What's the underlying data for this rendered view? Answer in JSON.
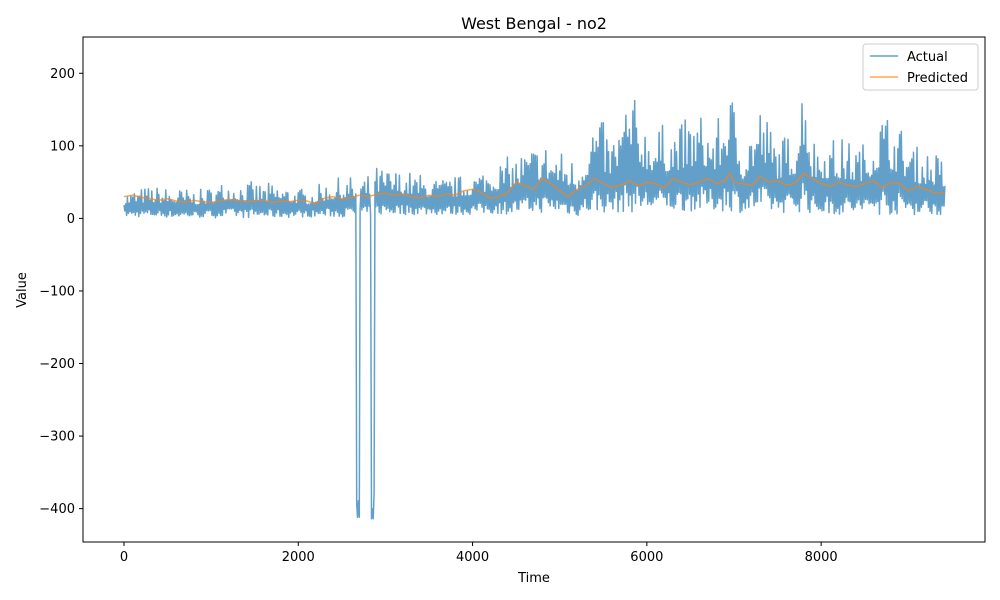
{
  "chart_data": {
    "type": "line",
    "title": "West Bengal - no2",
    "xlabel": "Time",
    "ylabel": "Value",
    "xlim": [
      -470,
      9880
    ],
    "ylim": [
      -446,
      250
    ],
    "x_ticks": [
      0,
      2000,
      4000,
      6000,
      8000
    ],
    "x_tick_labels": [
      "0",
      "2000",
      "4000",
      "6000",
      "8000"
    ],
    "y_ticks": [
      -400,
      -300,
      -200,
      -100,
      0,
      100,
      200
    ],
    "y_tick_labels": [
      "−400",
      "−300",
      "−200",
      "−100",
      "0",
      "100",
      "200"
    ],
    "grid": false,
    "legend_position": "top-right",
    "series": [
      {
        "name": "Actual",
        "color": "#1f77b4",
        "opacity": 0.7,
        "envelope": {
          "x": [
            0,
            300,
            600,
            900,
            1200,
            1500,
            1800,
            2100,
            2400,
            2600,
            2650,
            2750,
            2850,
            2900,
            3000,
            3300,
            3600,
            3900,
            4200,
            4500,
            4800,
            5000,
            5100,
            5200,
            5400,
            5600,
            5800,
            6000,
            6200,
            6400,
            6600,
            6800,
            6950,
            7100,
            7300,
            7500,
            7700,
            7810,
            7900,
            8100,
            8300,
            8500,
            8700,
            8900,
            9100,
            9300,
            9420
          ],
          "high": [
            38,
            45,
            42,
            40,
            55,
            50,
            48,
            40,
            55,
            58,
            55,
            58,
            62,
            72,
            70,
            65,
            55,
            60,
            75,
            90,
            110,
            95,
            90,
            80,
            150,
            115,
            180,
            135,
            130,
            135,
            150,
            130,
            190,
            110,
            165,
            110,
            125,
            220,
            115,
            115,
            110,
            105,
            157,
            130,
            100,
            95,
            82
          ],
          "low": [
            2,
            2,
            1,
            1,
            1,
            1,
            1,
            2,
            2,
            2,
            3,
            3,
            3,
            4,
            5,
            5,
            5,
            5,
            6,
            6,
            8,
            8,
            5,
            3,
            8,
            8,
            8,
            10,
            10,
            10,
            10,
            10,
            10,
            8,
            8,
            8,
            8,
            10,
            5,
            5,
            5,
            5,
            5,
            5,
            5,
            5,
            5
          ]
        },
        "spikes": [
          {
            "x_start": 2670,
            "x_end": 2700,
            "min": -412
          },
          {
            "x_start": 2840,
            "x_end": 2870,
            "min": -414
          }
        ]
      },
      {
        "name": "Predicted",
        "color": "#ff7f0e",
        "opacity": 0.7,
        "x": [
          0,
          100,
          200,
          300,
          400,
          500,
          600,
          700,
          800,
          900,
          1000,
          1100,
          1200,
          1300,
          1400,
          1500,
          1600,
          1700,
          1800,
          1900,
          2000,
          2100,
          2200,
          2300,
          2400,
          2500,
          2600,
          2700,
          2800,
          2900,
          3000,
          3100,
          3200,
          3300,
          3400,
          3500,
          3600,
          3700,
          3800,
          3900,
          4000,
          4100,
          4200,
          4300,
          4400,
          4500,
          4600,
          4700,
          4800,
          4900,
          5000,
          5100,
          5200,
          5300,
          5400,
          5500,
          5600,
          5700,
          5800,
          5900,
          6000,
          6100,
          6200,
          6300,
          6400,
          6500,
          6600,
          6700,
          6800,
          6900,
          6950,
          7000,
          7100,
          7200,
          7300,
          7400,
          7500,
          7600,
          7700,
          7800,
          7900,
          8000,
          8100,
          8200,
          8300,
          8400,
          8500,
          8600,
          8700,
          8800,
          8900,
          9000,
          9100,
          9200,
          9300,
          9420
        ],
        "y": [
          30,
          32,
          29,
          27,
          25,
          27,
          24,
          22,
          25,
          23,
          22,
          24,
          26,
          25,
          23,
          24,
          25,
          22,
          24,
          23,
          25,
          24,
          20,
          28,
          30,
          27,
          28,
          32,
          30,
          33,
          35,
          32,
          34,
          30,
          28,
          32,
          30,
          34,
          32,
          38,
          40,
          36,
          28,
          30,
          35,
          50,
          45,
          40,
          55,
          48,
          38,
          30,
          40,
          45,
          55,
          48,
          42,
          46,
          52,
          45,
          50,
          48,
          42,
          55,
          50,
          46,
          50,
          55,
          48,
          52,
          62,
          50,
          48,
          45,
          58,
          50,
          52,
          46,
          48,
          62,
          55,
          48,
          44,
          50,
          46,
          44,
          48,
          52,
          42,
          50,
          48,
          38,
          44,
          40,
          35,
          35
        ]
      }
    ]
  }
}
